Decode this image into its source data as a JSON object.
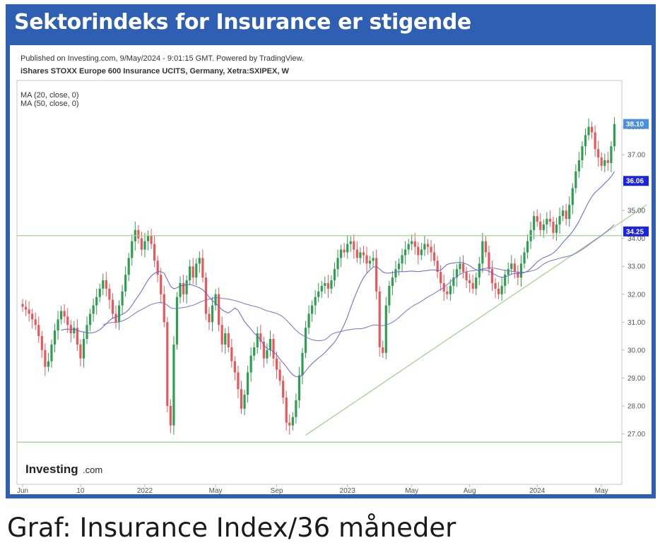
{
  "heading": "Sektorindeks for Insurance er stigende",
  "caption": "Graf: Insurance Index/36 måneder",
  "colors": {
    "frame": "#2f5fb3",
    "up": "#2e9e4f",
    "down": "#e8585a",
    "ma20": "#6a5fd0",
    "ma50": "#7a72c8",
    "trendline": "#a9cf8f",
    "last_price_badge": "#4a8fe0",
    "ma_badge": "#1a24e0"
  },
  "chart_data": {
    "type": "candlestick",
    "published": "Published on Investing.com, 9/May/2024 - 9:01:15 GMT. Powered by TradingView.",
    "instrument": "iShares STOXX Europe 600 Insurance UCITS, Germany, Xetra:SXIPEX, W",
    "indicators": [
      "MA (20, close, 0)",
      "MA (50, close, 0)"
    ],
    "logo": {
      "main": "Investing",
      "suffix": ".com"
    },
    "ylim": [
      26.0,
      39.0
    ],
    "y_ticks": [
      "38.00",
      "37.00",
      "36.00",
      "35.00",
      "34.00",
      "33.00",
      "32.00",
      "31.00",
      "30.00",
      "29.00",
      "28.00",
      "27.00"
    ],
    "x_ticks": [
      "Jun",
      "10",
      "2022",
      "May",
      "Sep",
      "2023",
      "May",
      "Aug",
      "2024",
      "May"
    ],
    "x_tick_index": [
      0,
      18,
      38,
      60,
      79,
      101,
      121,
      139,
      160,
      180
    ],
    "badges": [
      {
        "label": "38.10",
        "value": 38.1,
        "kind": "last_price"
      },
      {
        "label": "36.06",
        "value": 36.06,
        "kind": "ma"
      },
      {
        "label": "34.25",
        "value": 34.25,
        "kind": "ma"
      }
    ],
    "horizontal_lines": [
      34.1,
      26.7
    ],
    "trendline": {
      "from": [
        88,
        26.95
      ],
      "to": [
        194,
        35.2
      ]
    },
    "close": [
      31.55,
      31.45,
      31.3,
      31.1,
      30.9,
      30.5,
      30.0,
      29.4,
      29.6,
      30.2,
      30.7,
      31.1,
      31.4,
      31.2,
      30.9,
      30.6,
      30.8,
      30.2,
      29.7,
      30.4,
      30.9,
      31.3,
      31.6,
      31.9,
      32.2,
      32.5,
      32.2,
      31.8,
      31.3,
      31.0,
      31.6,
      32.1,
      32.7,
      33.3,
      33.9,
      34.3,
      34.0,
      33.6,
      33.9,
      34.1,
      33.8,
      33.2,
      32.7,
      32.0,
      31.0,
      28.0,
      27.3,
      30.2,
      31.9,
      32.4,
      32.0,
      32.5,
      33.0,
      32.6,
      33.1,
      33.3,
      32.6,
      31.3,
      31.0,
      31.6,
      32.0,
      30.9,
      30.2,
      30.6,
      30.1,
      29.6,
      29.2,
      28.6,
      27.9,
      28.4,
      29.2,
      29.8,
      30.1,
      30.6,
      30.3,
      29.7,
      30.0,
      30.4,
      29.7,
      29.3,
      28.9,
      28.3,
      27.4,
      27.3,
      27.6,
      28.2,
      29.1,
      29.9,
      30.8,
      31.3,
      31.6,
      31.9,
      32.1,
      32.3,
      32.4,
      32.2,
      32.5,
      32.9,
      33.3,
      33.6,
      33.5,
      33.8,
      33.9,
      33.6,
      33.3,
      33.5,
      33.4,
      33.1,
      33.2,
      33.3,
      32.1,
      30.1,
      29.9,
      31.6,
      32.3,
      32.6,
      32.9,
      33.1,
      33.4,
      33.6,
      33.8,
      33.9,
      33.7,
      33.4,
      33.6,
      33.8,
      33.7,
      33.5,
      33.2,
      32.8,
      32.4,
      32.1,
      32.0,
      32.3,
      32.6,
      32.9,
      33.1,
      32.8,
      32.5,
      32.4,
      32.2,
      32.6,
      33.1,
      33.9,
      33.5,
      32.9,
      32.4,
      32.2,
      32.0,
      32.3,
      32.7,
      32.9,
      33.1,
      32.8,
      32.6,
      33.1,
      33.5,
      33.9,
      34.3,
      34.8,
      34.6,
      34.3,
      34.5,
      34.7,
      34.6,
      34.2,
      34.5,
      34.8,
      35.0,
      34.7,
      35.2,
      35.8,
      36.4,
      36.8,
      37.3,
      37.7,
      38.0,
      37.8,
      37.2,
      36.9,
      36.6,
      36.8,
      36.7,
      37.3,
      38.1
    ]
  }
}
